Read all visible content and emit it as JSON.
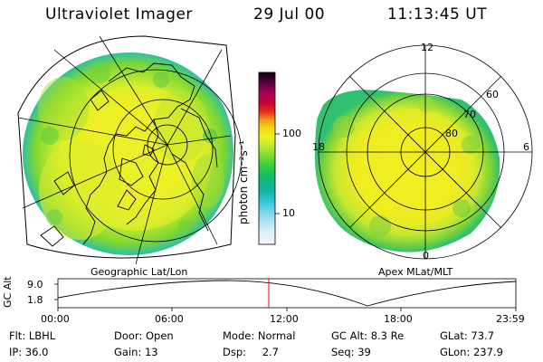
{
  "header": {
    "title": "Ultraviolet Imager",
    "date": "29 Jul 00",
    "time": "11:13:45 UT"
  },
  "colorbar": {
    "label": "photon cm⁻²s⁻¹",
    "tick_high": "100",
    "tick_low": "10",
    "colors": [
      "#f6f6f6",
      "#d8eef6",
      "#98dcee",
      "#38c8dc",
      "#10b4a8",
      "#10b870",
      "#30cc40",
      "#80dc30",
      "#c8ec30",
      "#f0f020",
      "#f8d010",
      "#f0a018",
      "#e83020",
      "#c80030",
      "#a80058",
      "#58003c",
      "#100010"
    ]
  },
  "left_panel": {
    "label": "Geographic Lat/Lon"
  },
  "right_panel": {
    "label": "Apex MLat/MLT",
    "mlt_labels": {
      "top": "12",
      "left": "18",
      "right": "6",
      "bottom": "0"
    },
    "lat_labels": [
      "60",
      "70",
      "80"
    ]
  },
  "timeline": {
    "ylabel": "GC Alt",
    "y_ticks": [
      "9.0",
      "1.8"
    ],
    "x_ticks": [
      "00:00",
      "06:00",
      "12:00",
      "18:00",
      "23:59"
    ],
    "marker_color": "#ff0000"
  },
  "info": {
    "filter": {
      "label": "Flt:",
      "value": "LBHL"
    },
    "ip": {
      "label": "IP:",
      "value": "36.0"
    },
    "door": {
      "label": "Door:",
      "value": "Open"
    },
    "gain": {
      "label": "Gain:",
      "value": "13"
    },
    "mode": {
      "label": "Mode:",
      "value": "Normal"
    },
    "dsp": {
      "label": "Dsp:",
      "value": "2.7"
    },
    "gc_alt": {
      "label": "GC Alt:",
      "value": "8.3 Re"
    },
    "seq": {
      "label": "Seq:",
      "value": "39"
    },
    "glat": {
      "label": "GLat:",
      "value": "73.7"
    },
    "glon": {
      "label": "GLon:",
      "value": "237.9"
    }
  }
}
